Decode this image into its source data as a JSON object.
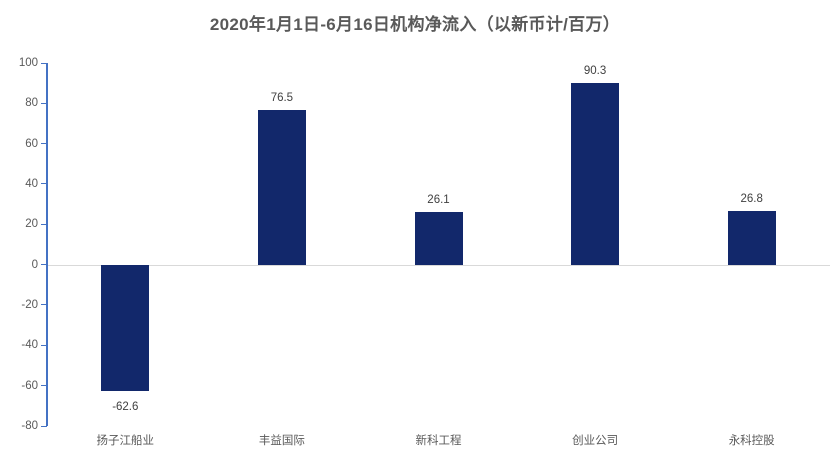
{
  "chart_data": {
    "type": "bar",
    "title": "2020年1月1日-6月16日机构净流入（以新币计/百万）",
    "categories": [
      "扬子江船业",
      "丰益国际",
      "新科工程",
      "创业公司",
      "永科控股"
    ],
    "values": [
      -62.6,
      76.5,
      26.1,
      90.3,
      26.8
    ],
    "data_labels": [
      "-62.6",
      "76.5",
      "26.1",
      "90.3",
      "26.8"
    ],
    "xlabel": "",
    "ylabel": "",
    "ylim": [
      -80,
      100
    ],
    "yticks": [
      100,
      80,
      60,
      40,
      20,
      0,
      -20,
      -40,
      -60,
      -80
    ],
    "grid": "zero-line-only",
    "legend": "none",
    "colors": {
      "bar": "#12286B",
      "axis": "#4472C4",
      "zero_line": "#D9D9D9",
      "title": "#595959",
      "tick_label": "#595959",
      "data_label": "#404040",
      "background": "#FFFFFF"
    }
  }
}
